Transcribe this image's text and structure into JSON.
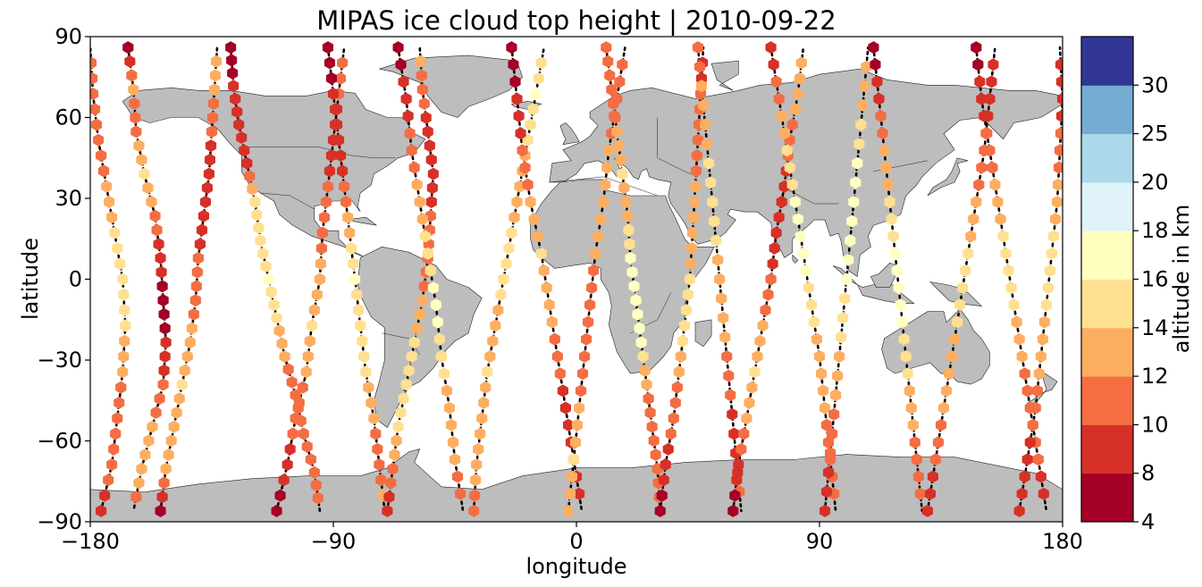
{
  "chart_data": {
    "type": "scatter",
    "title": "MIPAS ice cloud top height | 2010-09-22",
    "xlabel": "longitude",
    "ylabel": "latitude",
    "xlim": [
      -180,
      180
    ],
    "ylim": [
      -90,
      90
    ],
    "xticks": [
      -180,
      -90,
      0,
      90,
      180
    ],
    "yticks": [
      -90,
      -60,
      -30,
      0,
      30,
      60,
      90
    ],
    "xtick_labels": [
      "−180",
      "−90",
      "0",
      "90",
      "180"
    ],
    "ytick_labels": [
      "−90",
      "−60",
      "−30",
      "0",
      "30",
      "60",
      "90"
    ],
    "grid": false,
    "colorbar": {
      "label": "altitude in km",
      "bounds": [
        4,
        8,
        10,
        12,
        14,
        16,
        18,
        20,
        25,
        30
      ],
      "tick_labels": [
        "4",
        "8",
        "10",
        "12",
        "14",
        "16",
        "18",
        "20",
        "25",
        "30"
      ],
      "colors": [
        "#a50026",
        "#d73027",
        "#f46d43",
        "#fdae61",
        "#fee090",
        "#ffffbf",
        "#e0f3f8",
        "#abd9e9",
        "#74add1",
        "#313695"
      ]
    },
    "orbits": [
      {
        "lons": [
          -176,
          -172,
          -170,
          -168,
          -167,
          -168,
          -171,
          -174,
          -177,
          -179,
          -180
        ],
        "heights": [
          9,
          11,
          11,
          12,
          14,
          15,
          14,
          12,
          11,
          10,
          12
        ]
      },
      {
        "lons": [
          -166,
          -164,
          -163,
          -160,
          -156,
          -154,
          -153,
          -152,
          -153,
          -157,
          -161,
          -164
        ],
        "heights": [
          7,
          12,
          11,
          14,
          11,
          9,
          7,
          8,
          10,
          12,
          13,
          11
        ]
      },
      {
        "lons": [
          -154,
          -152,
          -149,
          -146,
          -143,
          -141,
          -140,
          -138,
          -136,
          -135,
          -134,
          -133
        ],
        "heights": [
          7,
          12,
          13,
          14,
          13,
          11,
          10,
          9,
          8,
          10,
          12,
          13
        ]
      },
      {
        "lons": [
          -128,
          -127,
          -125,
          -122,
          -119,
          -117,
          -114,
          -111,
          -108,
          -104,
          -101,
          -97,
          -95
        ],
        "heights": [
          7,
          8,
          8,
          9,
          14,
          15,
          16,
          14,
          12,
          10,
          10,
          11,
          12
        ]
      },
      {
        "lons": [
          -111,
          -107,
          -104,
          -100,
          -98,
          -95,
          -94,
          -92,
          -90,
          -88,
          -86
        ],
        "heights": [
          7,
          9,
          11,
          12,
          14,
          13,
          11,
          10,
          9,
          10,
          12
        ]
      },
      {
        "lons": [
          -92,
          -90,
          -88,
          -86,
          -84,
          -82,
          -80,
          -78,
          -75,
          -73,
          -71
        ],
        "heights": [
          7,
          8,
          9,
          10,
          13,
          16,
          15,
          14,
          12,
          11,
          13
        ]
      },
      {
        "lons": [
          -70,
          -68,
          -66,
          -63,
          -60,
          -57,
          -55,
          -54,
          -53,
          -55,
          -57,
          -58
        ],
        "heights": [
          8,
          11,
          14,
          15,
          14,
          12,
          11,
          10,
          8,
          9,
          11,
          13
        ]
      },
      {
        "lons": [
          -66,
          -63,
          -61,
          -58,
          -55,
          -52,
          -50,
          -47,
          -45,
          -42
        ],
        "heights": [
          7,
          9,
          11,
          13,
          15,
          17,
          15,
          13,
          12,
          11
        ]
      },
      {
        "lons": [
          -38,
          -37,
          -35,
          -33,
          -30,
          -27,
          -24,
          -21,
          -18,
          -15,
          -12
        ],
        "heights": [
          11,
          13,
          12,
          14,
          13,
          15,
          14,
          12,
          14,
          16,
          13
        ]
      },
      {
        "lons": [
          -24,
          -22,
          -20,
          -17,
          -13,
          -10,
          -7,
          -4,
          -1,
          2
        ],
        "heights": [
          7,
          8,
          10,
          12,
          14,
          13,
          11,
          9,
          8,
          10
        ]
      },
      {
        "lons": [
          -3,
          -1,
          1,
          3,
          5,
          7,
          10,
          12,
          15,
          18
        ],
        "heights": [
          13,
          14,
          12,
          11,
          10,
          12,
          13,
          12,
          11,
          10
        ]
      },
      {
        "lons": [
          11,
          13,
          15,
          17,
          19,
          20,
          22,
          24,
          26,
          28,
          30,
          31
        ],
        "heights": [
          10,
          11,
          12,
          14,
          13,
          16,
          17,
          16,
          12,
          11,
          10,
          11
        ]
      },
      {
        "lons": [
          31,
          33,
          36,
          38,
          40,
          42,
          43,
          44,
          45,
          46,
          47
        ],
        "heights": [
          7,
          9,
          11,
          12,
          15,
          14,
          13,
          12,
          11,
          10,
          9
        ]
      },
      {
        "lons": [
          45,
          47,
          49,
          51,
          53,
          55,
          57,
          59,
          61
        ],
        "heights": [
          11,
          13,
          14,
          15,
          13,
          12,
          10,
          9,
          11
        ]
      },
      {
        "lons": [
          58,
          60,
          63,
          66,
          69,
          72,
          74,
          77,
          79,
          82,
          84
        ],
        "heights": [
          7,
          9,
          12,
          14,
          12,
          10,
          8,
          9,
          11,
          13,
          12
        ]
      },
      {
        "lons": [
          72,
          75,
          78,
          81,
          84,
          87,
          90,
          92,
          94,
          96
        ],
        "heights": [
          8,
          11,
          14,
          16,
          17,
          15,
          13,
          12,
          11,
          10
        ]
      },
      {
        "lons": [
          92,
          94,
          96,
          98,
          100,
          102,
          104,
          106,
          108
        ],
        "heights": [
          8,
          10,
          12,
          14,
          16,
          17,
          16,
          13,
          12
        ]
      },
      {
        "lons": [
          110,
          112,
          114,
          116,
          118,
          120,
          122,
          124,
          126,
          128
        ],
        "heights": [
          7,
          9,
          12,
          14,
          16,
          17,
          15,
          13,
          11,
          10
        ]
      },
      {
        "lons": [
          130,
          133,
          136,
          139,
          142,
          145,
          148,
          151,
          153,
          155
        ],
        "heights": [
          8,
          10,
          12,
          13,
          15,
          14,
          12,
          11,
          9,
          10
        ]
      },
      {
        "lons": [
          148,
          150,
          153,
          156,
          159,
          162,
          165,
          168,
          171,
          174
        ],
        "heights": [
          7,
          9,
          11,
          13,
          15,
          14,
          12,
          11,
          10,
          9
        ]
      },
      {
        "lons": [
          164,
          167,
          170,
          172,
          174,
          176,
          178,
          179,
          180,
          179
        ],
        "heights": [
          8,
          9,
          11,
          13,
          14,
          15,
          13,
          11,
          9,
          10
        ]
      }
    ]
  }
}
